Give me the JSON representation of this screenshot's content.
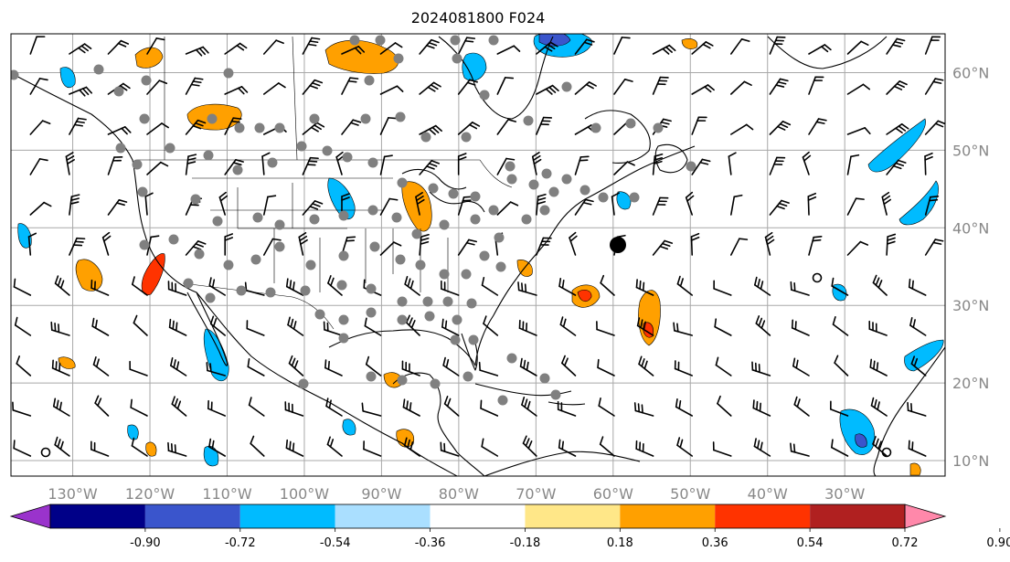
{
  "title": "2024081800 F024",
  "lat_labels": [
    "60°N",
    "50°N",
    "40°N",
    "30°N",
    "20°N",
    "10°N"
  ],
  "lat_values": [
    60,
    50,
    40,
    30,
    20,
    10
  ],
  "lon_labels": [
    "130°W",
    "120°W",
    "110°W",
    "100°W",
    "90°W",
    "80°W",
    "70°W",
    "60°W",
    "50°W",
    "40°W",
    "30°W"
  ],
  "lon_values": [
    -130,
    -120,
    -110,
    -100,
    -90,
    -80,
    -70,
    -60,
    -50,
    -40,
    -30
  ],
  "extent": {
    "lon_min": -138,
    "lon_max": -17,
    "lat_min": 8,
    "lat_max": 65
  },
  "colorbar": {
    "levels": [
      "-0.90",
      "-0.72",
      "-0.54",
      "-0.36",
      "-0.18",
      "0.18",
      "0.36",
      "0.54",
      "0.72",
      "0.90"
    ],
    "colors": [
      "#9a33cc",
      "#000088",
      "#3a55cc",
      "#00bbff",
      "#aadfff",
      "#ffffff",
      "#ffe788",
      "#ffa000",
      "#ff3300",
      "#b02020",
      "#ff88aa"
    ],
    "extend": "both"
  },
  "colors": {
    "grid": "#a8a8a8",
    "coast": "#000000",
    "station": "#808080"
  }
}
